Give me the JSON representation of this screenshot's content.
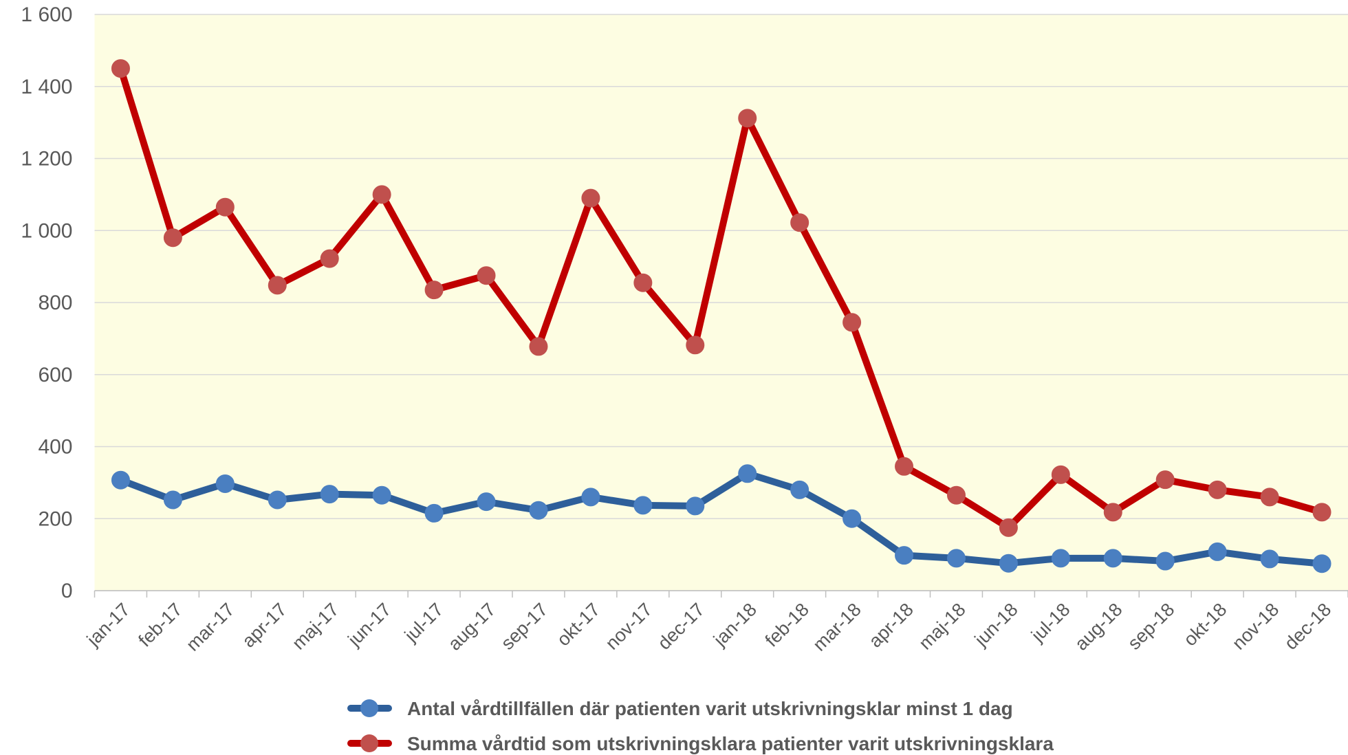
{
  "chart_data": {
    "type": "line",
    "categories": [
      "jan-17",
      "feb-17",
      "mar-17",
      "apr-17",
      "maj-17",
      "jun-17",
      "jul-17",
      "aug-17",
      "sep-17",
      "okt-17",
      "nov-17",
      "dec-17",
      "jan-18",
      "feb-18",
      "mar-18",
      "apr-18",
      "maj-18",
      "jun-18",
      "jul-18",
      "aug-18",
      "sep-18",
      "okt-18",
      "nov-18",
      "dec-18"
    ],
    "series": [
      {
        "name": "Antal vårdtillfällen där patienten varit utskrivningsklar minst 1 dag",
        "color": "#2e5f9a",
        "marker_color": "#4a7fc1",
        "values": [
          307,
          252,
          297,
          252,
          268,
          265,
          215,
          247,
          223,
          260,
          237,
          235,
          325,
          280,
          200,
          98,
          90,
          76,
          90,
          90,
          82,
          108,
          88,
          75
        ]
      },
      {
        "name": "Summa vårdtid som utskrivningsklara patienter varit utskrivningsklara",
        "color": "#c00000",
        "marker_color": "#c0504d",
        "values": [
          1450,
          980,
          1065,
          848,
          922,
          1100,
          835,
          875,
          678,
          1090,
          855,
          682,
          1312,
          1022,
          745,
          345,
          265,
          175,
          322,
          218,
          308,
          280,
          260,
          218
        ]
      }
    ],
    "ylim": [
      0,
      1600
    ],
    "yticks": [
      0,
      200,
      400,
      600,
      800,
      {
        "value": 1000,
        "label": "1 000"
      },
      {
        "value": 1200,
        "label": "1 200"
      },
      {
        "value": 1400,
        "label": "1 400"
      },
      {
        "value": 1600,
        "label": "1 600"
      }
    ],
    "grid": true,
    "plot_background": "#fdfde2",
    "legend": "bottom"
  }
}
